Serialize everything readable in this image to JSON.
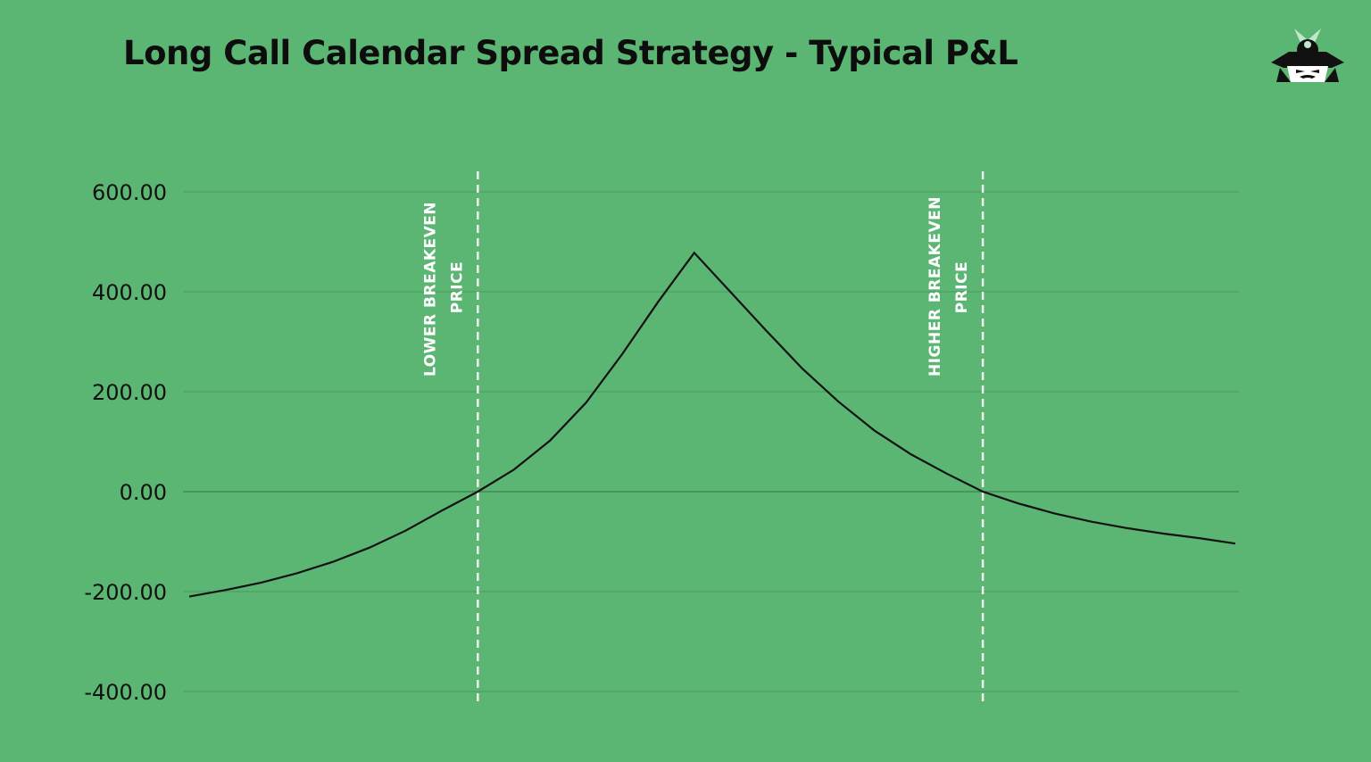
{
  "title": "Long Call Calendar Spread Strategy - Typical P&L",
  "colors": {
    "background": "#5cb673",
    "gridline": "#4a9a5e",
    "curve": "#111111",
    "breakeven_line": "#f2f2f2"
  },
  "logo": {
    "icon": "samurai-helmet-logo-icon"
  },
  "chart_data": {
    "type": "line",
    "title": "Long Call Calendar Spread Strategy - Typical P&L",
    "xlabel": "",
    "ylabel": "",
    "ylim": [
      -400,
      600
    ],
    "yticks": [
      600,
      400,
      200,
      0,
      -200,
      -400
    ],
    "ytick_labels": [
      "600.00",
      "400.00",
      "200.00",
      "0.00",
      "-200.00",
      "-400.00"
    ],
    "grid": true,
    "series": [
      {
        "values": [
          -210,
          -197,
          -182,
          -163,
          -140,
          -112,
          -78,
          -38,
          0,
          44,
          102,
          178,
          275,
          380,
          478,
          400,
          322,
          246,
          180,
          122,
          75,
          36,
          0,
          -24,
          -44,
          -60,
          -73,
          -84,
          -93,
          -104
        ]
      }
    ],
    "vertical_markers": [
      {
        "label_line1": "LOWER BREAKEVEN",
        "label_line2": "PRICE",
        "series_index": 8
      },
      {
        "label_line1": "HIGHER BREAKEVEN",
        "label_line2": "PRICE",
        "series_index": 22
      }
    ],
    "peak_index": 14
  }
}
